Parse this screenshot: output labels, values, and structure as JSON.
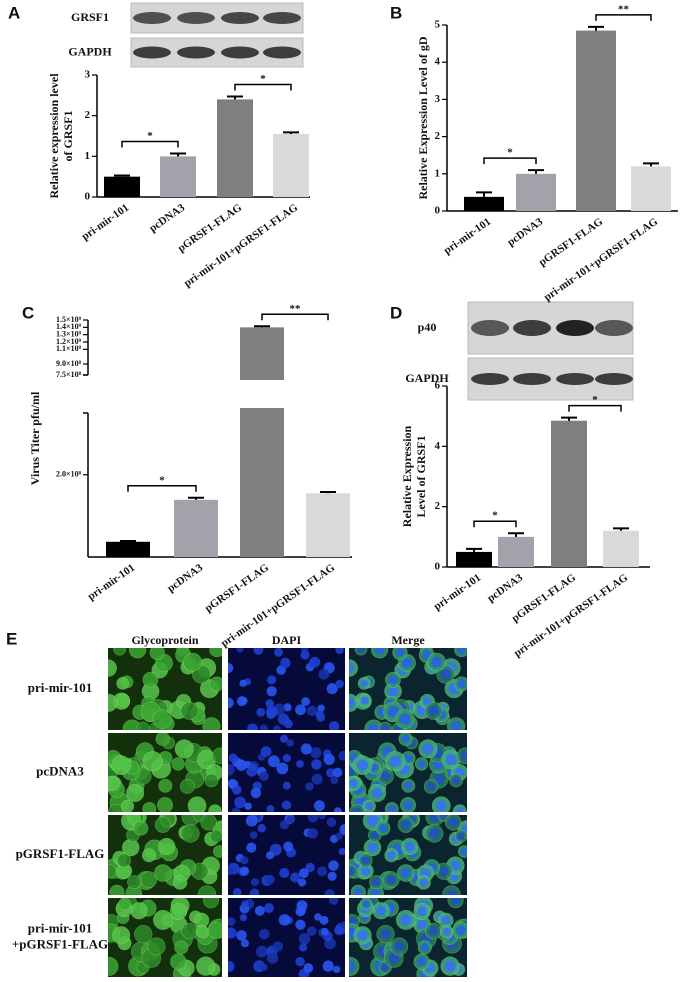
{
  "figure": {
    "panel_labels": [
      "A",
      "B",
      "C",
      "D",
      "E"
    ]
  },
  "blots": [
    {
      "labels": [
        "GRSF1",
        "GAPDH"
      ]
    },
    {
      "labels": [
        "p40",
        "GAPDH"
      ]
    }
  ],
  "chart_data": [
    {
      "type": "bar",
      "ylabel": "Relative expression level\nof GRSF1",
      "categories": [
        "pri-mir-101",
        "pcDNA3",
        "pGRSF1-FLAG",
        "pri-mir-101+pGRSF1-FLAG"
      ],
      "values": [
        0.5,
        1.0,
        2.4,
        1.55
      ],
      "errors": [
        0.03,
        0.07,
        0.07,
        0.04
      ],
      "colors": [
        "#000000",
        "#a2a2aa",
        "#7f7f7f",
        "#d9d9d9"
      ],
      "ylim": [
        0,
        3
      ],
      "yticks": [
        0,
        1,
        2,
        3
      ],
      "annotations": [
        {
          "text": "*",
          "between": [
            0,
            1
          ]
        },
        {
          "text": "*",
          "between": [
            2,
            3
          ]
        }
      ]
    },
    {
      "type": "bar",
      "ylabel": "Relative  Expression Level of gD",
      "categories": [
        "pri-mir-101",
        "pcDNA3",
        "pGRSF1-FLAG",
        "pri-mir-101+pGRSF1-FLAG"
      ],
      "values": [
        0.38,
        1.0,
        4.85,
        1.2
      ],
      "errors": [
        0.12,
        0.1,
        0.1,
        0.08
      ],
      "colors": [
        "#000000",
        "#a2a2aa",
        "#7f7f7f",
        "#d9d9d9"
      ],
      "ylim": [
        0,
        5
      ],
      "yticks": [
        0,
        1,
        2,
        3,
        4,
        5
      ],
      "annotations": [
        {
          "text": "*",
          "between": [
            0,
            1
          ]
        },
        {
          "text": "**",
          "between": [
            2,
            3
          ]
        }
      ]
    },
    {
      "type": "bar",
      "ylabel": "Virus Titer pfu/ml",
      "categories": [
        "pri-mir-101",
        "pcDNA3",
        "pGRSF1-FLAG",
        "pri-mir-101+pGRSF1-FLAG"
      ],
      "values": [
        37000000,
        139000000,
        1400000000,
        155000000
      ],
      "errors": [
        2000000,
        5000000,
        15000000,
        3000000
      ],
      "colors": [
        "#000000",
        "#a2a2aa",
        "#7f7f7f",
        "#d9d9d9"
      ],
      "ylim": [
        0,
        1500000000
      ],
      "axis_break": [
        350000000,
        750000000
      ],
      "yticks": [
        {
          "value": 200000000,
          "label": "2.0×10⁸"
        },
        {
          "value": 750000000,
          "label": "7.5×10⁸"
        },
        {
          "value": 900000000,
          "label": "9.0×10⁸"
        },
        {
          "value": 1100000000,
          "label": "1.1×10⁹"
        },
        {
          "value": 1200000000,
          "label": "1.2×10⁹"
        },
        {
          "value": 1300000000,
          "label": "1.3×10⁹"
        },
        {
          "value": 1400000000,
          "label": "1.4×10⁹"
        },
        {
          "value": 1500000000,
          "label": "1.5×10⁹"
        }
      ],
      "annotations": [
        {
          "text": "*",
          "between": [
            0,
            1
          ]
        },
        {
          "text": "**",
          "between": [
            2,
            3
          ]
        }
      ]
    },
    {
      "type": "bar",
      "ylabel": "Relative  Expression\nLevel of GRSF1",
      "categories": [
        "pri-mir-101",
        "pcDNA3",
        "pGRSF1-FLAG",
        "pri-mir-101+pGRSF1-FLAG"
      ],
      "values": [
        0.5,
        1.0,
        4.85,
        1.2
      ],
      "errors": [
        0.1,
        0.12,
        0.1,
        0.08
      ],
      "colors": [
        "#000000",
        "#a2a2aa",
        "#7f7f7f",
        "#d9d9d9"
      ],
      "ylim": [
        0,
        6
      ],
      "yticks": [
        0,
        2,
        4,
        6
      ],
      "annotations": [
        {
          "text": "*",
          "between": [
            0,
            1
          ]
        },
        {
          "text": "*",
          "between": [
            2,
            3
          ]
        }
      ]
    }
  ],
  "microscopy": {
    "columns": [
      "Glycoprotein",
      "DAPI",
      "Merge"
    ],
    "rows": [
      "pri-mir-101",
      "pcDNA3",
      "pGRSF1-FLAG",
      "pri-mir-101\n+pGRSF1-FLAG"
    ]
  }
}
